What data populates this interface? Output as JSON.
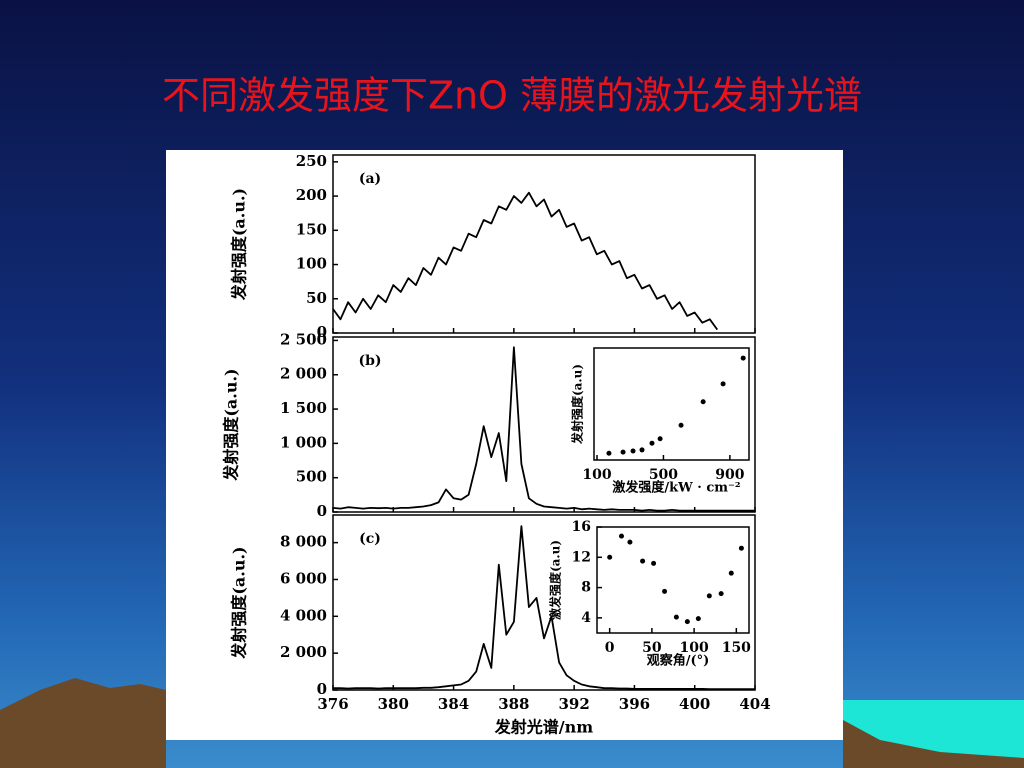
{
  "title": "不同激发强度下ZnO 薄膜的激光发射光谱",
  "chart_data": [
    {
      "type": "line",
      "label": "(a)",
      "y_label": "发射强度(a.u.)",
      "color": "#000000",
      "xlim": [
        376,
        404
      ],
      "ylim": [
        0,
        260
      ],
      "yticks": [
        0,
        50,
        100,
        150,
        200,
        250
      ],
      "x": [
        376,
        376.5,
        377,
        377.5,
        378,
        378.5,
        379,
        379.5,
        380,
        380.5,
        381,
        381.5,
        382,
        382.5,
        383,
        383.5,
        384,
        384.5,
        385,
        385.5,
        386,
        386.5,
        387,
        387.5,
        388,
        388.5,
        389,
        389.5,
        390,
        390.5,
        391,
        391.5,
        392,
        392.5,
        393,
        393.5,
        394,
        394.5,
        395,
        395.5,
        396,
        396.5,
        397,
        397.5,
        398,
        398.5,
        399,
        399.5,
        400,
        400.5,
        401,
        401.5
      ],
      "values": [
        35,
        20,
        45,
        30,
        50,
        35,
        55,
        45,
        70,
        60,
        80,
        70,
        95,
        85,
        110,
        100,
        125,
        120,
        145,
        140,
        165,
        160,
        185,
        180,
        200,
        190,
        205,
        185,
        195,
        170,
        180,
        155,
        160,
        135,
        140,
        115,
        120,
        100,
        105,
        80,
        85,
        65,
        70,
        50,
        55,
        35,
        45,
        25,
        30,
        15,
        20,
        5
      ]
    },
    {
      "type": "line",
      "label": "(b)",
      "y_label": "发射强度(a.u.)",
      "color": "#000000",
      "xlim": [
        376,
        404
      ],
      "ylim": [
        0,
        2550
      ],
      "yticks": [
        0,
        500,
        {
          "value": 1000,
          "label": "1 000"
        },
        {
          "value": 1500,
          "label": "1 500"
        },
        {
          "value": 2000,
          "label": "2 000"
        },
        {
          "value": 2500,
          "label": "2 500"
        }
      ],
      "x": [
        376,
        376.5,
        377,
        377.5,
        378,
        378.5,
        379,
        379.5,
        380,
        380.5,
        381,
        381.5,
        382,
        382.5,
        383,
        383.5,
        384,
        384.5,
        385,
        385.5,
        386,
        386.5,
        387,
        387.5,
        388,
        388.5,
        389,
        389.5,
        390,
        390.5,
        391,
        391.5,
        392,
        392.5,
        393,
        393.5,
        394,
        394.5,
        395,
        395.5,
        396,
        396.5,
        397,
        397.5,
        398,
        398.5,
        399,
        399.5,
        400,
        400.5,
        401,
        401.5,
        402,
        402.5,
        403,
        403.5,
        404
      ],
      "values": [
        60,
        50,
        70,
        60,
        50,
        60,
        55,
        60,
        50,
        60,
        60,
        70,
        80,
        100,
        140,
        330,
        200,
        180,
        250,
        700,
        1250,
        800,
        1150,
        450,
        2400,
        700,
        200,
        120,
        80,
        70,
        60,
        50,
        60,
        40,
        50,
        40,
        30,
        40,
        30,
        30,
        30,
        20,
        30,
        20,
        20,
        30,
        20,
        20,
        20,
        20,
        20,
        20,
        20,
        20,
        20,
        20,
        20
      ]
    },
    {
      "type": "line",
      "label": "(c)",
      "y_label": "发射强度(a.u.)",
      "x_label": "发射光谱/nm",
      "color": "#000000",
      "xlim": [
        376,
        404
      ],
      "ylim": [
        0,
        9500
      ],
      "xticks": [
        376,
        380,
        384,
        388,
        392,
        396,
        400,
        404
      ],
      "yticks": [
        0,
        {
          "value": 2000,
          "label": "2 000"
        },
        {
          "value": 4000,
          "label": "4 000"
        },
        {
          "value": 6000,
          "label": "6 000"
        },
        {
          "value": 8000,
          "label": "8 000"
        }
      ],
      "x": [
        376,
        376.5,
        377,
        377.5,
        378,
        378.5,
        379,
        379.5,
        380,
        380.5,
        381,
        381.5,
        382,
        382.5,
        383,
        383.5,
        384,
        384.5,
        385,
        385.5,
        386,
        386.5,
        387,
        387.5,
        388,
        388.5,
        389,
        389.5,
        390,
        390.5,
        391,
        391.5,
        392,
        392.5,
        393,
        393.5,
        394,
        394.5,
        395,
        395.5,
        396,
        396.5,
        397,
        397.5,
        398,
        398.5,
        399,
        399.5,
        400,
        400.5,
        401,
        401.5,
        402,
        402.5,
        403,
        403.5,
        404
      ],
      "values": [
        100,
        100,
        80,
        100,
        100,
        100,
        80,
        100,
        100,
        100,
        100,
        100,
        120,
        120,
        150,
        200,
        250,
        300,
        500,
        1000,
        2500,
        1200,
        6800,
        3000,
        3700,
        8900,
        4500,
        5000,
        2800,
        4000,
        1500,
        800,
        500,
        300,
        200,
        150,
        100,
        100,
        80,
        80,
        60,
        60,
        60,
        60,
        60,
        60,
        60,
        60,
        60,
        60,
        50,
        50,
        50,
        50,
        50,
        50,
        50
      ]
    },
    {
      "type": "scatter",
      "y_label": "发射强度(a.u)",
      "x_label": "激发强度/kW · cm⁻²",
      "color": "#000000",
      "xlim": [
        82,
        1015
      ],
      "ylim": [
        0,
        100
      ],
      "xticks": [
        100,
        500,
        900
      ],
      "x": [
        172,
        257,
        317,
        371,
        431,
        480,
        606,
        739,
        859,
        980
      ],
      "values": [
        6,
        7,
        8,
        9,
        15,
        19,
        31,
        52,
        68,
        91
      ]
    },
    {
      "type": "scatter",
      "y_label": "激发强度(a.u)",
      "x_label": "观察角/(°)",
      "color": "#000000",
      "xlim": [
        -15,
        165
      ],
      "ylim": [
        2,
        16
      ],
      "xticks": [
        0,
        50,
        100,
        150
      ],
      "yticks": [
        4,
        8,
        12,
        16
      ],
      "x": [
        0,
        14,
        24,
        39,
        52,
        65,
        79,
        92,
        105,
        118,
        132,
        144,
        156
      ],
      "values": [
        12,
        14.8,
        14,
        11.5,
        11.2,
        7.5,
        4.1,
        3.5,
        3.9,
        6.9,
        7.2,
        9.9,
        13.2
      ]
    }
  ]
}
